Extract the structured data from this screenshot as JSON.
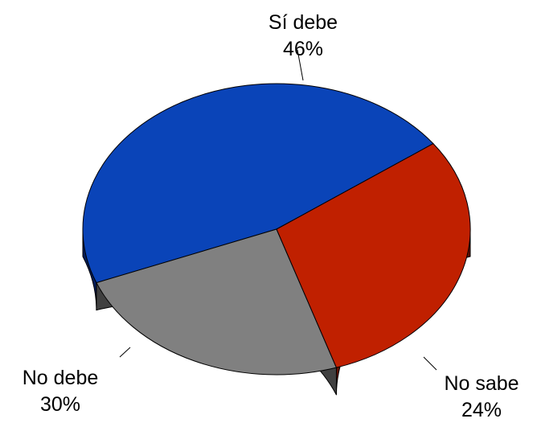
{
  "chart_data": {
    "type": "pie",
    "title": "",
    "style": "3d",
    "slices": [
      {
        "label": "Sí debe",
        "value": 46,
        "display": "46%",
        "color": "#0a44b8",
        "side_color": "#041e5c"
      },
      {
        "label": "No sabe",
        "value": 24,
        "display": "24%",
        "color": "#808080",
        "side_color": "#404040"
      },
      {
        "label": "No debe",
        "value": 30,
        "display": "30%",
        "color": "#c02000",
        "side_color": "#601000"
      }
    ]
  }
}
